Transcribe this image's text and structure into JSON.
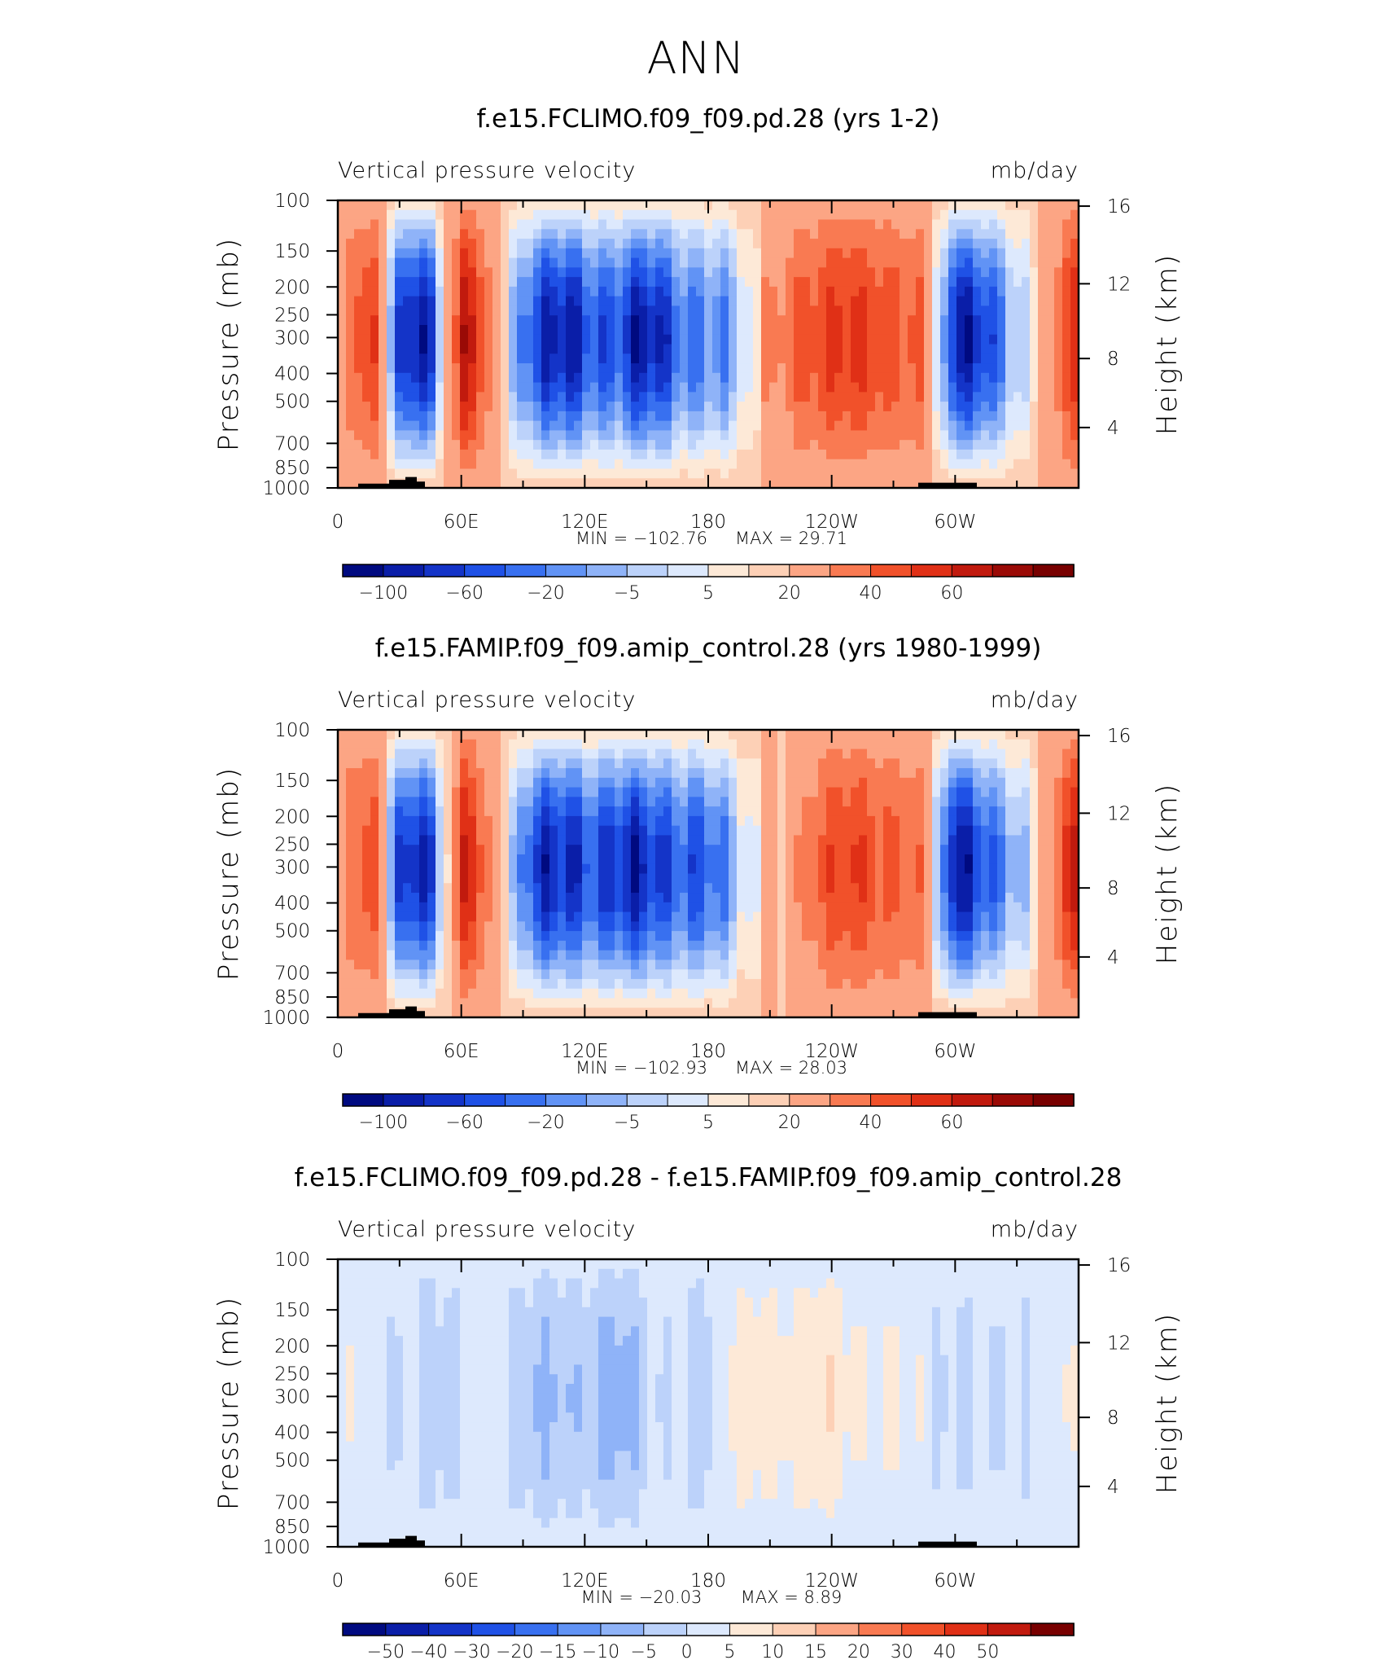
{
  "suptitle": "ANN",
  "chart_data": [
    {
      "type": "heatmap",
      "title": "f.e15.FCLIMO.f09_f09.pd.28 (yrs 1-2)",
      "variable": "Vertical pressure velocity",
      "units": "mb/day",
      "ylabel_left": "Pressure (mb)",
      "ylabel_right": "Height (km)",
      "x_ticks": [
        "0",
        "60E",
        "120E",
        "180",
        "120W",
        "60W"
      ],
      "y_ticks_pressure": [
        "100",
        "150",
        "200",
        "250",
        "300",
        "400",
        "500",
        "700",
        "850",
        "1000"
      ],
      "y_ticks_height": [
        "16",
        "12",
        "8",
        "4"
      ],
      "min_label": "MIN = −102.76",
      "max_label": "MAX = 29.71",
      "min": -102.76,
      "max": 29.71,
      "colorbar_labels": [
        "−100",
        "−60",
        "−20",
        "−5",
        "5",
        "20",
        "40",
        "60"
      ],
      "colorbar_colors": [
        "#000a80",
        "#0a1ea8",
        "#1434c8",
        "#1f51e6",
        "#3870f0",
        "#6193f5",
        "#8fb3f8",
        "#bcd2fa",
        "#dde9fd",
        "#fde9d7",
        "#fdd0b6",
        "#fca584",
        "#f97a52",
        "#f1512a",
        "#e03016",
        "#c11a0e",
        "#9a0a06",
        "#780000"
      ],
      "column_profile": [
        0.1,
        0.6,
        -0.9,
        -0.9,
        0.9,
        0.2,
        -0.8,
        -0.9,
        -0.8,
        -0.8,
        -0.9,
        -0.75,
        -0.6,
        -0.35,
        0.05,
        0.45,
        0.55,
        0.55,
        0.5,
        0.35,
        -0.9,
        -0.8,
        -0.55,
        0.1,
        0.65
      ]
    },
    {
      "type": "heatmap",
      "title": "f.e15.FAMIP.f09_f09.amip_control.28 (yrs 1980-1999)",
      "variable": "Vertical pressure velocity",
      "units": "mb/day",
      "ylabel_left": "Pressure (mb)",
      "ylabel_right": "Height (km)",
      "x_ticks": [
        "0",
        "60E",
        "120E",
        "180",
        "120W",
        "60W"
      ],
      "y_ticks_pressure": [
        "100",
        "150",
        "200",
        "250",
        "300",
        "400",
        "500",
        "700",
        "850",
        "1000"
      ],
      "y_ticks_height": [
        "16",
        "12",
        "8",
        "4"
      ],
      "min_label": "MIN = −102.93",
      "max_label": "MAX = 28.03",
      "min": -102.93,
      "max": 28.03,
      "colorbar_labels": [
        "−100",
        "−60",
        "−20",
        "−5",
        "5",
        "20",
        "40",
        "60"
      ],
      "colorbar_colors": [
        "#000a80",
        "#0a1ea8",
        "#1434c8",
        "#1f51e6",
        "#3870f0",
        "#6193f5",
        "#8fb3f8",
        "#bcd2fa",
        "#dde9fd",
        "#fde9d7",
        "#fdd0b6",
        "#fca584",
        "#f97a52",
        "#f1512a",
        "#e03016",
        "#c11a0e",
        "#9a0a06",
        "#780000"
      ],
      "column_profile": [
        0.1,
        0.55,
        -0.9,
        -0.9,
        0.8,
        0.15,
        -0.75,
        -0.85,
        -0.85,
        -0.85,
        -0.85,
        -0.8,
        -0.65,
        -0.4,
        -0.05,
        0.2,
        0.45,
        0.55,
        0.4,
        0.25,
        -0.9,
        -0.8,
        -0.55,
        0.1,
        0.7
      ]
    },
    {
      "type": "heatmap",
      "title": "f.e15.FCLIMO.f09_f09.pd.28 - f.e15.FAMIP.f09_f09.amip_control.28",
      "variable": "Vertical pressure velocity",
      "units": "mb/day",
      "ylabel_left": "Pressure (mb)",
      "ylabel_right": "Height (km)",
      "x_ticks": [
        "0",
        "60E",
        "120E",
        "180",
        "120W",
        "60W"
      ],
      "y_ticks_pressure": [
        "100",
        "150",
        "200",
        "250",
        "300",
        "400",
        "500",
        "700",
        "850",
        "1000"
      ],
      "y_ticks_height": [
        "16",
        "12",
        "8",
        "4"
      ],
      "min_label": "MIN = −20.03",
      "max_label": "MAX = 8.89",
      "min": -20.03,
      "max": 8.89,
      "colorbar_labels": [
        "−50",
        "−40",
        "−30",
        "−20",
        "−15",
        "−10",
        "−5",
        "0",
        "5",
        "10",
        "15",
        "20",
        "30",
        "40",
        "50"
      ],
      "colorbar_colors": [
        "#000a80",
        "#0a1ea8",
        "#1434c8",
        "#1f51e6",
        "#3870f0",
        "#6193f5",
        "#8fb3f8",
        "#bcd2fa",
        "#dde9fd",
        "#fde9d7",
        "#fdd0b6",
        "#fca584",
        "#f97a52",
        "#f1512a",
        "#e03016",
        "#c11a0e",
        "#780000"
      ],
      "column_profile": [
        0.05,
        0.05,
        -0.1,
        -0.35,
        0.05,
        -0.1,
        -0.25,
        -0.35,
        -0.35,
        -0.45,
        -0.2,
        -0.1,
        -0.2,
        0.2,
        0.25,
        0.25,
        0.3,
        0.15,
        0.1,
        0.05,
        -0.1,
        -0.15,
        -0.1,
        0.05,
        0.05
      ]
    }
  ]
}
